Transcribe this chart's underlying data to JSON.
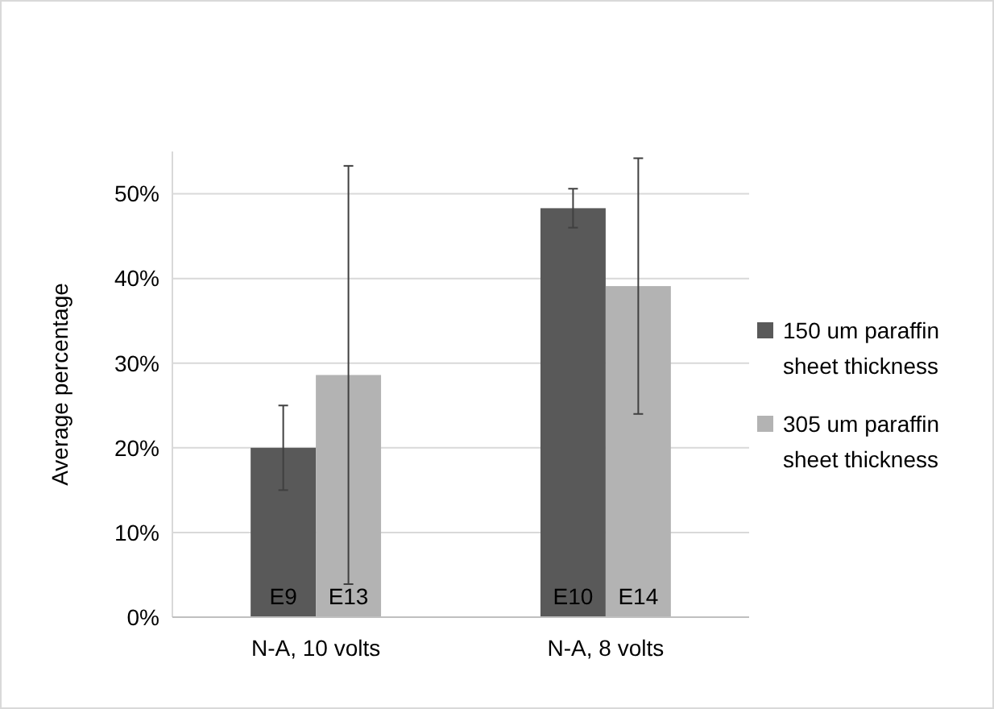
{
  "chart_data": {
    "type": "bar",
    "ylabel": "Average percentage",
    "categories": [
      "N-A, 10 volts",
      "N-A, 8 volts"
    ],
    "series": [
      {
        "name": "150 um paraffin sheet thickness",
        "color": "#595959",
        "values": [
          20.0,
          48.3
        ],
        "errors": [
          5.0,
          2.3
        ],
        "value_labels": [
          "E9",
          "E10"
        ]
      },
      {
        "name": "305 um paraffin sheet thickness",
        "color": "#b3b3b3",
        "values": [
          28.6,
          39.1
        ],
        "errors": [
          24.7,
          15.1
        ],
        "value_labels": [
          "E13",
          "E14"
        ]
      }
    ],
    "ylim": [
      0,
      55
    ],
    "yticks": [
      {
        "value": 0,
        "label": "0%"
      },
      {
        "value": 10,
        "label": "10%"
      },
      {
        "value": 20,
        "label": "20%"
      },
      {
        "value": 30,
        "label": "30%"
      },
      {
        "value": 40,
        "label": "40%"
      },
      {
        "value": 50,
        "label": "50%"
      }
    ],
    "grid": "y",
    "legend": "right"
  }
}
